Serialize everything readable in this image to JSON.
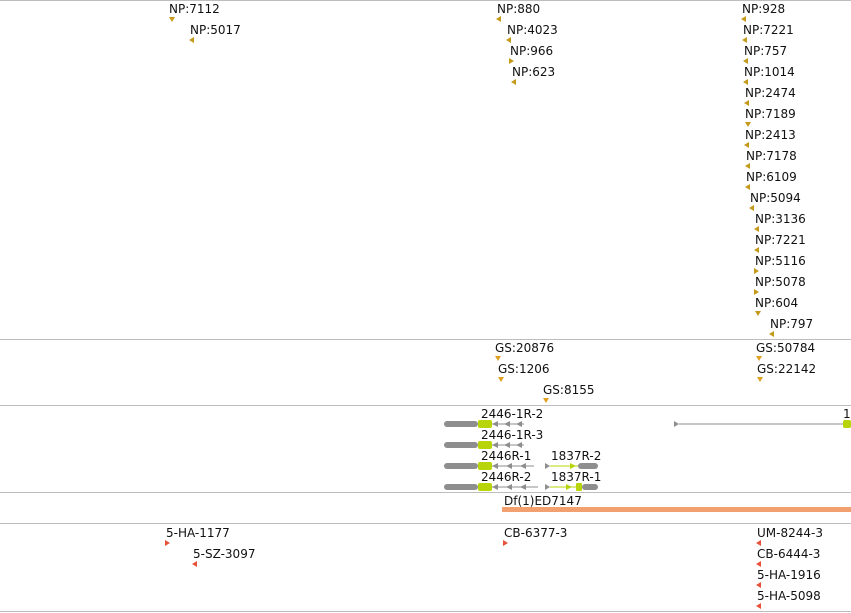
{
  "colors": {
    "np_marker": "#c49a1a",
    "gs_marker": "#e0a020",
    "hit_marker": "#e8503a",
    "deficiency_bar": "#f2a070",
    "transcript_gray": "#8e8e8e",
    "transcript_green": "#b8d40a"
  },
  "np_track": {
    "features": [
      {
        "label": "NP:7112",
        "marker": "down"
      },
      {
        "label": "NP:5017",
        "marker": "left"
      },
      {
        "label": "NP:880",
        "marker": "left"
      },
      {
        "label": "NP:4023",
        "marker": "left"
      },
      {
        "label": "NP:966",
        "marker": "right"
      },
      {
        "label": "NP:623",
        "marker": "left"
      },
      {
        "label": "NP:928",
        "marker": "left"
      },
      {
        "label": "NP:7221",
        "marker": "left"
      },
      {
        "label": "NP:757",
        "marker": "left"
      },
      {
        "label": "NP:1014",
        "marker": "left"
      },
      {
        "label": "NP:2474",
        "marker": "left"
      },
      {
        "label": "NP:7189",
        "marker": "down"
      },
      {
        "label": "NP:2413",
        "marker": "left"
      },
      {
        "label": "NP:7178",
        "marker": "left"
      },
      {
        "label": "NP:6109",
        "marker": "left"
      },
      {
        "label": "NP:5094",
        "marker": "left"
      },
      {
        "label": "NP:3136",
        "marker": "left"
      },
      {
        "label": "NP:7221",
        "marker": "left"
      },
      {
        "label": "NP:5116",
        "marker": "right"
      },
      {
        "label": "NP:5078",
        "marker": "right"
      },
      {
        "label": "NP:604",
        "marker": "down"
      },
      {
        "label": "NP:797",
        "marker": "left"
      }
    ]
  },
  "gs_track": {
    "features": [
      {
        "label": "GS:20876",
        "marker": "down"
      },
      {
        "label": "GS:1206",
        "marker": "down"
      },
      {
        "label": "GS:8155",
        "marker": "down"
      },
      {
        "label": "GS:50784",
        "marker": "down"
      },
      {
        "label": "GS:22142",
        "marker": "down"
      }
    ]
  },
  "transcript_track": {
    "labels": [
      "2446-1R-2",
      "2446-1R-3",
      "2446R-1",
      "2446R-2",
      "1837R-2",
      "1837R-1",
      "1"
    ]
  },
  "deficiency_track": {
    "label": "Df(1)ED7147"
  },
  "hit_track": {
    "features": [
      {
        "label": "5-HA-1177",
        "marker": "right"
      },
      {
        "label": "5-SZ-3097",
        "marker": "left"
      },
      {
        "label": "CB-6377-3",
        "marker": "right"
      },
      {
        "label": "UM-8244-3",
        "marker": "left"
      },
      {
        "label": "CB-6444-3",
        "marker": "left"
      },
      {
        "label": "5-HA-1916",
        "marker": "left"
      },
      {
        "label": "5-HA-5098",
        "marker": "left"
      }
    ]
  }
}
